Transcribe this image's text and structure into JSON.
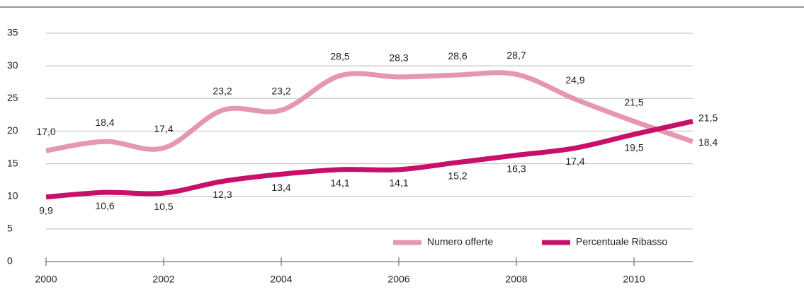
{
  "chart_data": {
    "type": "line",
    "x": [
      2000,
      2001,
      2002,
      2003,
      2004,
      2005,
      2006,
      2007,
      2008,
      2009,
      2010,
      2011
    ],
    "xlim": [
      2000,
      2011
    ],
    "xticks": [
      2000,
      2002,
      2004,
      2006,
      2008,
      2010
    ],
    "ylim": [
      0,
      35
    ],
    "yticks": [
      0,
      5,
      10,
      15,
      20,
      25,
      30,
      35
    ],
    "grid": true,
    "legend": "lower right",
    "series": [
      {
        "name": "Numero offerte",
        "color": "#e597b1",
        "values": [
          17.0,
          18.4,
          17.4,
          23.2,
          23.2,
          28.5,
          28.3,
          28.6,
          28.7,
          24.9,
          21.5,
          18.4
        ],
        "value_labels": [
          "17,0",
          "18,4",
          "17,4",
          "23,2",
          "23,2",
          "28,5",
          "28,3",
          "28,6",
          "28,7",
          "24,9",
          "21,5",
          "18,4"
        ]
      },
      {
        "name": "Percentuale Ribasso",
        "color": "#c8106a",
        "values": [
          9.9,
          10.6,
          10.5,
          12.3,
          13.4,
          14.1,
          14.1,
          15.2,
          16.3,
          17.4,
          19.5,
          21.5
        ],
        "value_labels": [
          "9,9",
          "10,6",
          "10,5",
          "12,3",
          "13,4",
          "14,1",
          "14,1",
          "15,2",
          "16,3",
          "17,4",
          "19,5",
          "21,5"
        ]
      }
    ]
  }
}
